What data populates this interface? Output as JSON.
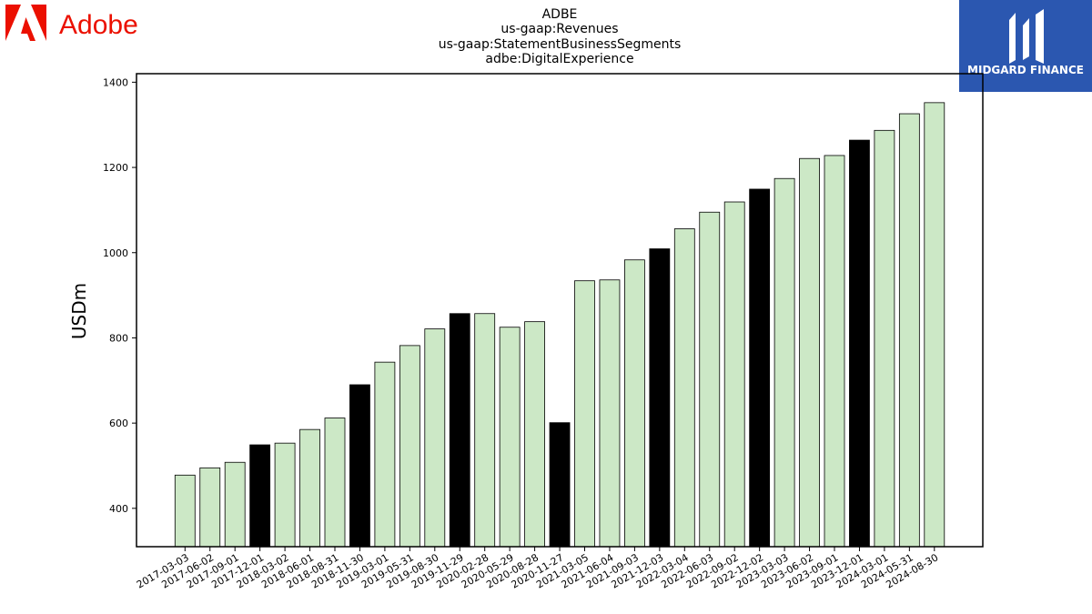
{
  "brand": {
    "left_logo_text": "Adobe",
    "left_logo_color": "#eb1000",
    "right_logo_text": "MIDGARD FINANCE",
    "right_logo_bg": "#2b57b0"
  },
  "chart_data": {
    "type": "bar",
    "title_lines": [
      "ADBE",
      "us-gaap:Revenues",
      "us-gaap:StatementBusinessSegments",
      "adbe:DigitalExperience"
    ],
    "xlabel": "",
    "ylabel": "USDm",
    "ylim": [
      310,
      1420
    ],
    "yticks": [
      400,
      600,
      800,
      1000,
      1200,
      1400
    ],
    "grid": false,
    "colors": {
      "default": "#cce8c6",
      "highlight": "#000000",
      "edge": "#000000"
    },
    "categories": [
      "2017-03-03",
      "2017-06-02",
      "2017-09-01",
      "2017-12-01",
      "2018-03-02",
      "2018-06-01",
      "2018-08-31",
      "2018-11-30",
      "2019-03-01",
      "2019-05-31",
      "2019-08-30",
      "2019-11-29",
      "2020-02-28",
      "2020-05-29",
      "2020-08-28",
      "2020-11-27",
      "2021-03-05",
      "2021-06-04",
      "2021-09-03",
      "2021-12-03",
      "2022-03-04",
      "2022-06-03",
      "2022-09-02",
      "2022-12-02",
      "2023-03-03",
      "2023-06-02",
      "2023-09-01",
      "2023-12-01",
      "2024-03-01",
      "2024-05-31",
      "2024-08-30"
    ],
    "values": [
      478,
      495,
      508,
      549,
      553,
      585,
      612,
      690,
      743,
      782,
      821,
      857,
      857,
      825,
      838,
      601,
      934,
      936,
      983,
      1009,
      1056,
      1095,
      1119,
      1149,
      1174,
      1221,
      1228,
      1264,
      1287,
      1326,
      1352
    ],
    "highlight": [
      false,
      false,
      false,
      true,
      false,
      false,
      false,
      true,
      false,
      false,
      false,
      true,
      false,
      false,
      false,
      true,
      false,
      false,
      false,
      true,
      false,
      false,
      false,
      true,
      false,
      false,
      false,
      true,
      false,
      false,
      false
    ]
  }
}
